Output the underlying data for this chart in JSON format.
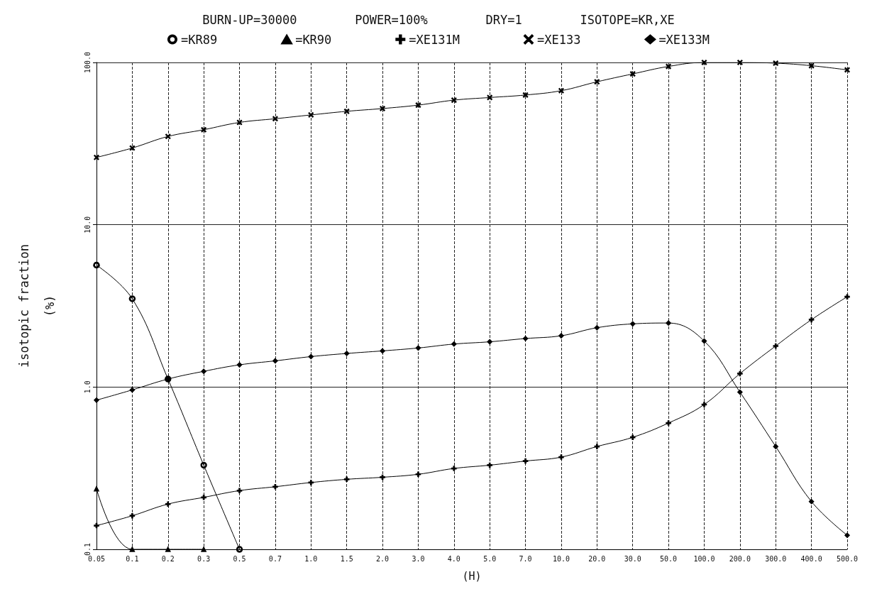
{
  "chart_data": {
    "type": "line",
    "title": "BURN-UP=30000        POWER=100%        DRY=1        ISOTOPE=KR,XE",
    "xlabel": "(H)",
    "ylabel": "isotopic fraction\n(%)",
    "categories": [
      "0.05",
      "0.1",
      "0.2",
      "0.3",
      "0.5",
      "0.7",
      "1.0",
      "1.5",
      "2.0",
      "3.0",
      "4.0",
      "5.0",
      "7.0",
      "10.0",
      "20.0",
      "30.0",
      "50.0",
      "100.0",
      "200.0",
      "300.0",
      "400.0",
      "500.0"
    ],
    "series": [
      {
        "name": "=KR89",
        "color": "#000000",
        "marker": "circle",
        "values": [
          5.64,
          3.5,
          1.12,
          0.33,
          0.1,
          null,
          null,
          null,
          null,
          null,
          null,
          null,
          null,
          null,
          null,
          null,
          null,
          null,
          null,
          null,
          null,
          null
        ]
      },
      {
        "name": "=KR90",
        "color": "#000000",
        "marker": "triangle",
        "values": [
          0.236,
          0.1,
          0.1,
          0.1,
          null,
          null,
          null,
          null,
          null,
          null,
          null,
          null,
          null,
          null,
          null,
          null,
          null,
          null,
          null,
          null,
          null,
          null
        ]
      },
      {
        "name": "=XE131M",
        "color": "#000000",
        "marker": "plus",
        "values": [
          0.14,
          0.161,
          0.19,
          0.209,
          0.23,
          0.243,
          0.258,
          0.27,
          0.278,
          0.29,
          0.315,
          0.33,
          0.35,
          0.37,
          0.43,
          0.49,
          0.6,
          0.78,
          1.21,
          1.79,
          2.6,
          3.6
        ]
      },
      {
        "name": "=XE133",
        "color": "#000000",
        "marker": "cross",
        "values": [
          26,
          29.7,
          35,
          38.5,
          42.7,
          45,
          47.5,
          50,
          52,
          54.6,
          58.6,
          60.8,
          63,
          67,
          76,
          85,
          94.5,
          100,
          100,
          99,
          95.5,
          90
        ]
      },
      {
        "name": "=XE133M",
        "color": "#000000",
        "marker": "diamond",
        "values": [
          0.83,
          0.96,
          1.12,
          1.25,
          1.37,
          1.45,
          1.54,
          1.61,
          1.67,
          1.74,
          1.84,
          1.9,
          1.99,
          2.07,
          2.32,
          2.45,
          2.48,
          1.92,
          0.93,
          0.43,
          0.197,
          0.122
        ]
      }
    ],
    "log": "y",
    "ylim": [
      0.1,
      100
    ],
    "yticks": [
      {
        "value": 0.1,
        "label": "0.1"
      },
      {
        "value": 1,
        "label": "1.0"
      },
      {
        "value": 10,
        "label": "10.0"
      },
      {
        "value": 100,
        "label": "100.0"
      }
    ],
    "grid": true,
    "legend": "top"
  }
}
